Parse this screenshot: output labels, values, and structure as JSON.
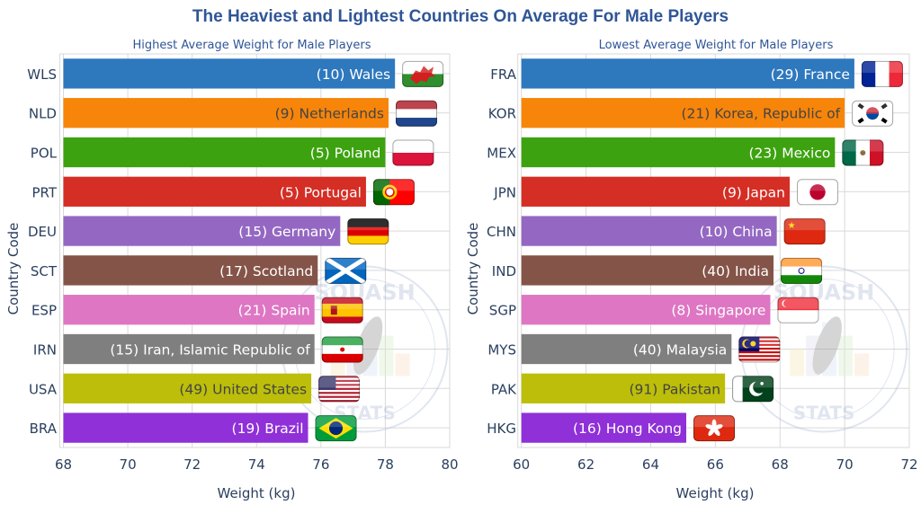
{
  "title": "The Heaviest and Lightest Countries On Average For Male Players",
  "chart_data": [
    {
      "type": "bar",
      "orientation": "horizontal",
      "title": "Highest Average Weight for Male Players",
      "xlabel": "Weight (kg)",
      "ylabel": "Country Code",
      "xlim": [
        68,
        80
      ],
      "xticks": [
        68,
        70,
        72,
        74,
        76,
        78,
        80
      ],
      "grid": true,
      "categories": [
        "WLS",
        "NLD",
        "POL",
        "PRT",
        "DEU",
        "SCT",
        "ESP",
        "IRN",
        "USA",
        "BRA"
      ],
      "values": [
        78.3,
        78.1,
        78.0,
        77.4,
        76.6,
        75.9,
        75.8,
        75.8,
        75.7,
        75.6
      ],
      "labels": [
        "(10) Wales",
        "(9) Netherlands",
        "(5) Poland",
        "(5) Portugal",
        "(15) Germany",
        "(17) Scotland",
        "(21) Spain",
        "(15) Iran, Islamic Republic of",
        "(49) United States",
        "(19) Brazil"
      ],
      "player_counts": [
        10,
        9,
        5,
        5,
        15,
        17,
        21,
        15,
        49,
        19
      ],
      "flags": [
        "flag-wales",
        "flag-netherlands",
        "flag-poland",
        "flag-portugal",
        "flag-germany",
        "flag-scotland",
        "flag-spain",
        "flag-iran",
        "flag-usa",
        "flag-brazil"
      ],
      "colors": [
        "#2e78be",
        "#f7850a",
        "#3da20f",
        "#d42e25",
        "#9468c2",
        "#855448",
        "#de76c3",
        "#7f7f7f",
        "#bcbe0a",
        "#9030d8"
      ]
    },
    {
      "type": "bar",
      "orientation": "horizontal",
      "title": "Lowest Average Weight for Male Players",
      "xlabel": "Weight (kg)",
      "ylabel": "Country Code",
      "xlim": [
        60,
        72
      ],
      "xticks": [
        60,
        62,
        64,
        66,
        68,
        70,
        72
      ],
      "grid": true,
      "categories": [
        "FRA",
        "KOR",
        "MEX",
        "JPN",
        "CHN",
        "IND",
        "SGP",
        "MYS",
        "PAK",
        "HKG"
      ],
      "values": [
        70.3,
        70.0,
        69.7,
        68.3,
        67.9,
        67.8,
        67.7,
        66.5,
        66.3,
        65.1
      ],
      "labels": [
        "(29) France",
        "(21) Korea, Republic of",
        "(23) Mexico",
        "(9) Japan",
        "(10) China",
        "(40) India",
        "(8) Singapore",
        "(40) Malaysia",
        "(91) Pakistan",
        "(16) Hong Kong"
      ],
      "player_counts": [
        29,
        21,
        23,
        9,
        10,
        40,
        8,
        40,
        91,
        16
      ],
      "flags": [
        "flag-france",
        "flag-korea",
        "flag-mexico",
        "flag-japan",
        "flag-china",
        "flag-india",
        "flag-singapore",
        "flag-malaysia",
        "flag-pakistan",
        "flag-hong-kong"
      ],
      "colors": [
        "#2e78be",
        "#f7850a",
        "#3da20f",
        "#d42e25",
        "#9468c2",
        "#855448",
        "#de76c3",
        "#7f7f7f",
        "#bcbe0a",
        "#9030d8"
      ]
    }
  ],
  "watermark": {
    "text_top": "SQUASH",
    "text_bottom": "STATS"
  },
  "colors": {
    "title": "#2f5597",
    "axis_text": "#2a3f5f",
    "grid": "#d9d9d9"
  }
}
